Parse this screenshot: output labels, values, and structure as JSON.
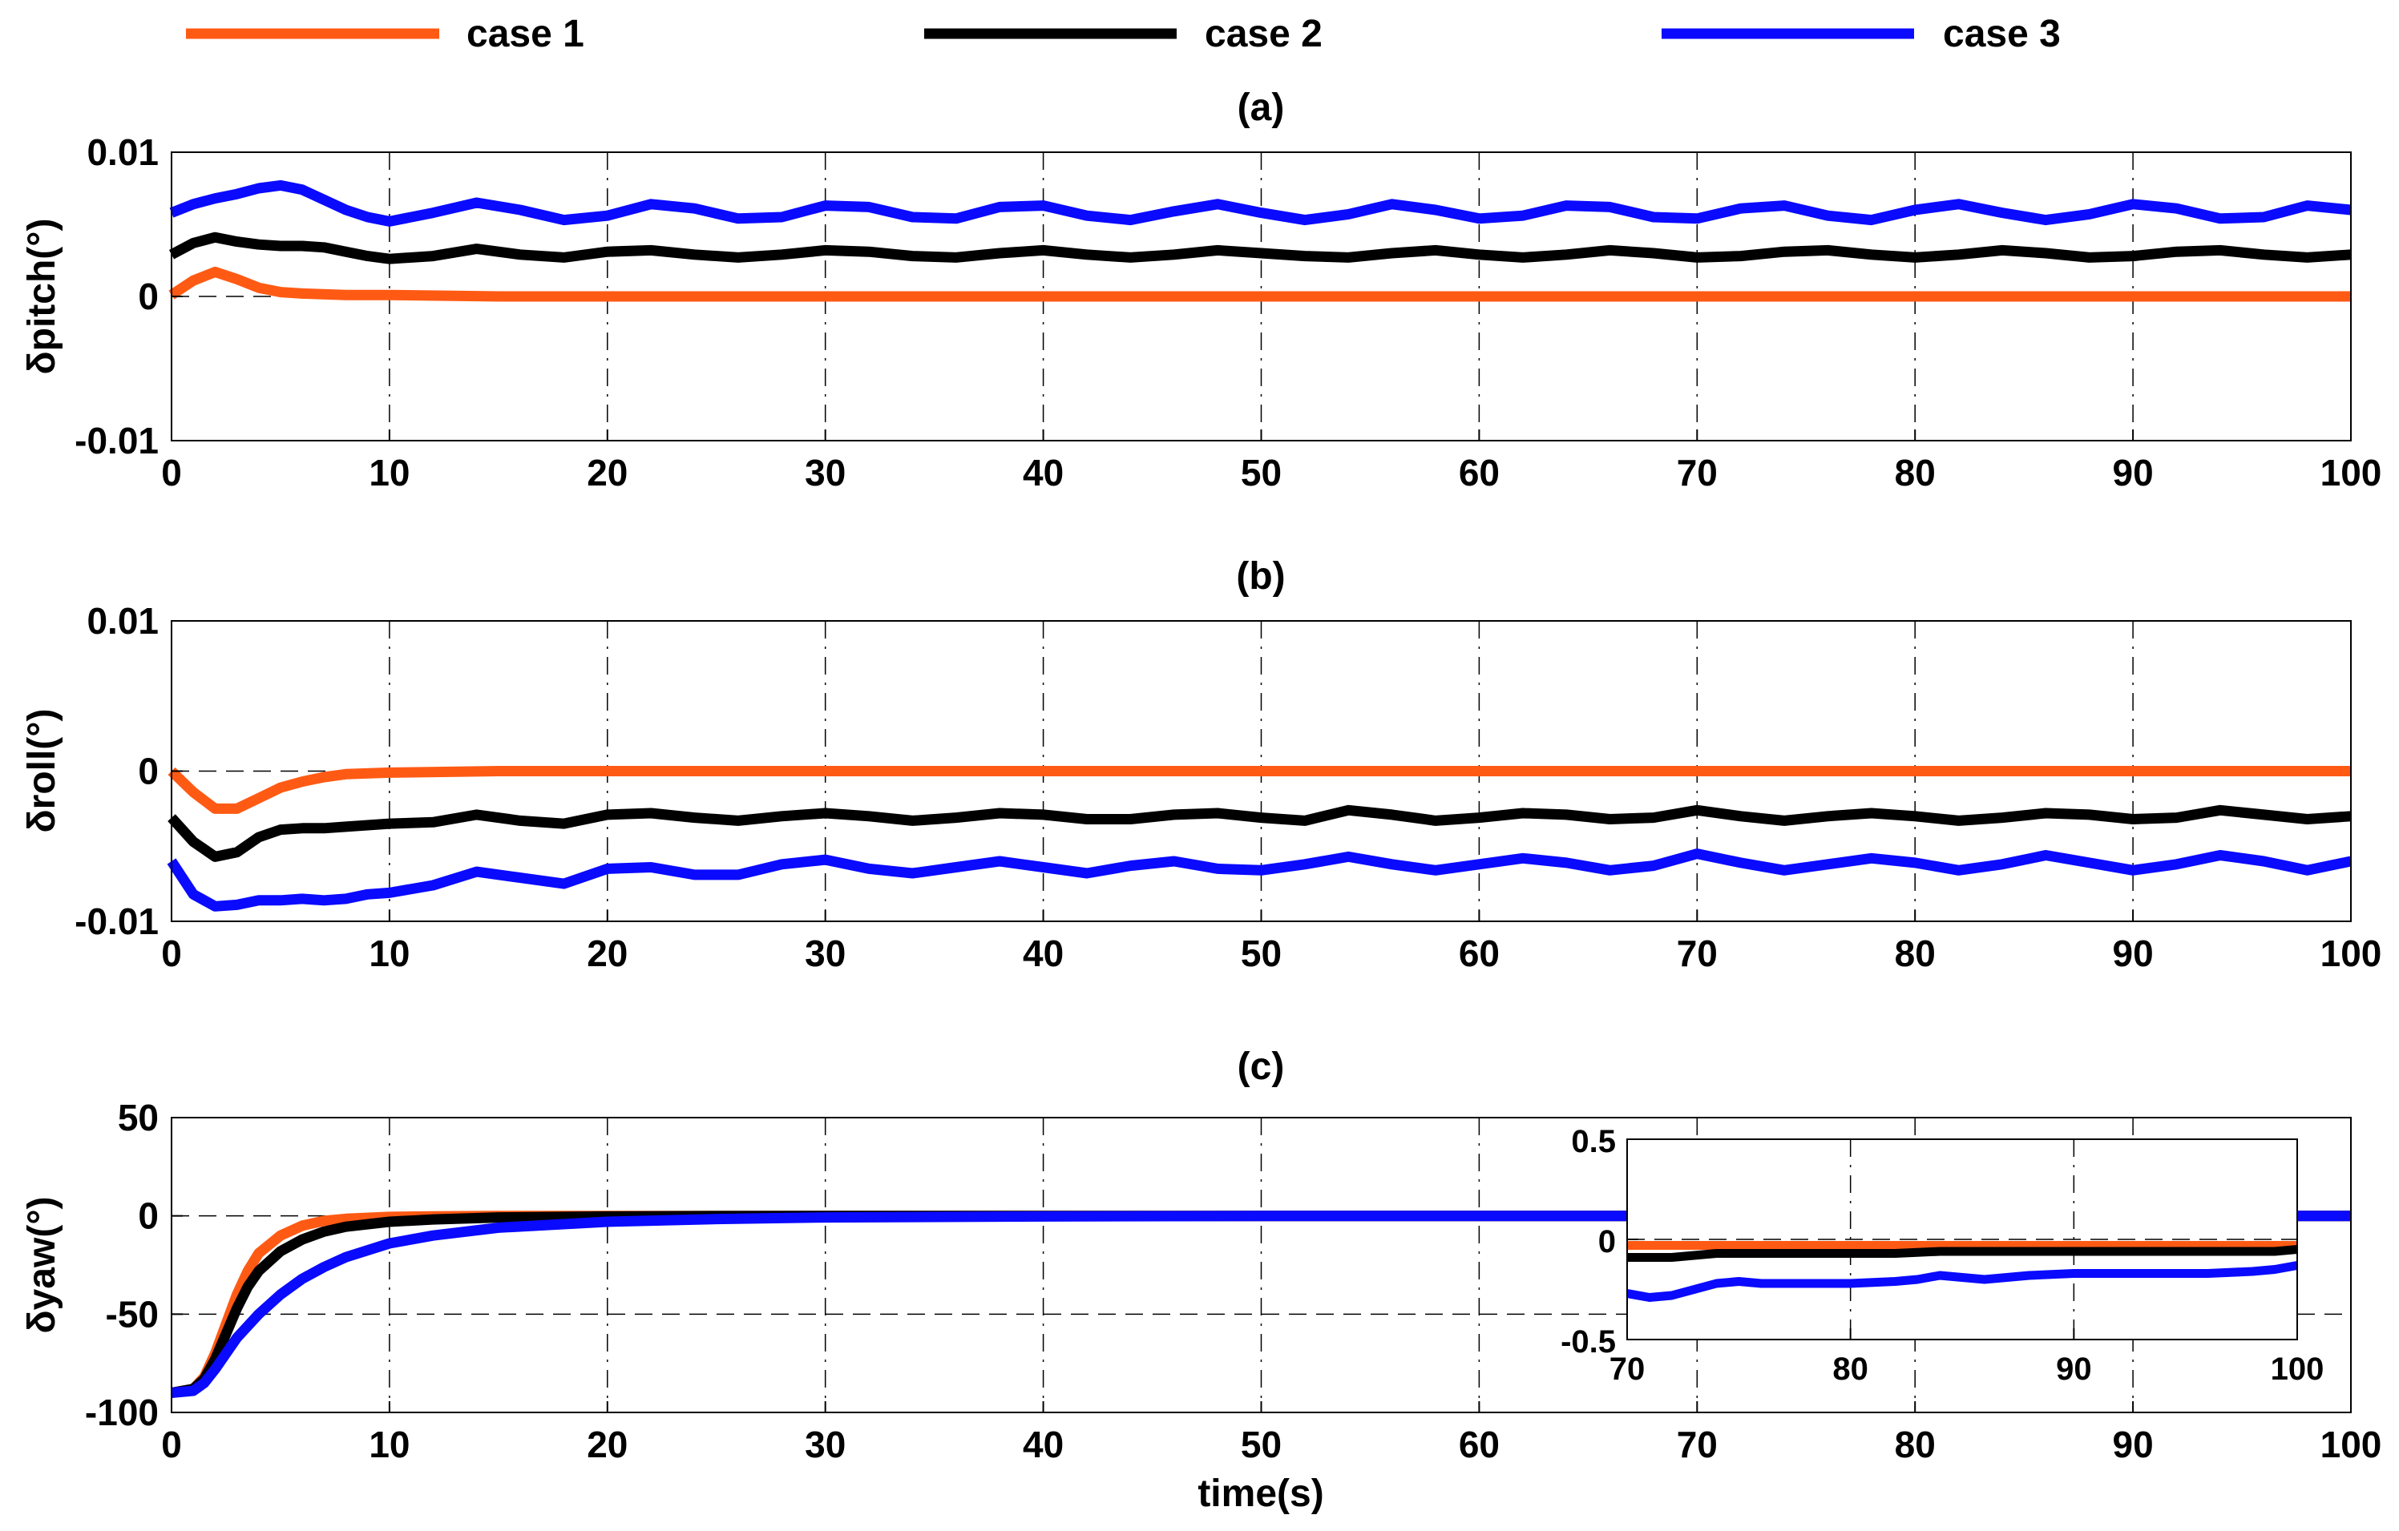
{
  "legend": [
    {
      "name": "case 1",
      "color": "#ff5a14"
    },
    {
      "name": "case 2",
      "color": "#000000"
    },
    {
      "name": "case 3",
      "color": "#0a0aff"
    }
  ],
  "chart_data": [
    {
      "type": "line",
      "title": "(a)",
      "xlabel": "",
      "ylabel": "δpitch(°)",
      "xlim": [
        0,
        100
      ],
      "ylim": [
        -0.01,
        0.01
      ],
      "xticks": [
        0,
        10,
        20,
        30,
        40,
        50,
        60,
        70,
        80,
        90,
        100
      ],
      "yticks": [
        -0.01,
        0,
        0.01
      ],
      "ytick_labels": [
        "-0.01",
        "0",
        "0.01"
      ],
      "grid": true,
      "series": [
        {
          "name": "case 1",
          "x": [
            0,
            1,
            2,
            3,
            4,
            5,
            6,
            8,
            10,
            15,
            20,
            30,
            40,
            50,
            60,
            70,
            80,
            90,
            100
          ],
          "values": [
            0.0001,
            0.0011,
            0.0017,
            0.0012,
            0.0006,
            0.0003,
            0.0002,
            0.0001,
            0.0001,
            0,
            0,
            0,
            0,
            0,
            0,
            0,
            0,
            0,
            0
          ]
        },
        {
          "name": "case 2",
          "x": [
            0,
            1,
            2,
            3,
            4,
            5,
            6,
            7,
            8,
            9,
            10,
            12,
            14,
            16,
            18,
            20,
            22,
            24,
            26,
            28,
            30,
            32,
            34,
            36,
            38,
            40,
            42,
            44,
            46,
            48,
            50,
            52,
            54,
            56,
            58,
            60,
            62,
            64,
            66,
            68,
            70,
            72,
            74,
            76,
            78,
            80,
            82,
            84,
            86,
            88,
            90,
            92,
            94,
            96,
            98,
            100
          ],
          "values": [
            0.0029,
            0.0037,
            0.0041,
            0.0038,
            0.0036,
            0.0035,
            0.0035,
            0.0034,
            0.0031,
            0.0028,
            0.0026,
            0.0028,
            0.0033,
            0.0029,
            0.0027,
            0.0031,
            0.0032,
            0.0029,
            0.0027,
            0.0029,
            0.0032,
            0.0031,
            0.0028,
            0.0027,
            0.003,
            0.0032,
            0.0029,
            0.0027,
            0.0029,
            0.0032,
            0.003,
            0.0028,
            0.0027,
            0.003,
            0.0032,
            0.0029,
            0.0027,
            0.0029,
            0.0032,
            0.003,
            0.0027,
            0.0028,
            0.0031,
            0.0032,
            0.0029,
            0.0027,
            0.0029,
            0.0032,
            0.003,
            0.0027,
            0.0028,
            0.0031,
            0.0032,
            0.0029,
            0.0027,
            0.0029
          ]
        },
        {
          "name": "case 3",
          "x": [
            0,
            1,
            2,
            3,
            4,
            5,
            6,
            7,
            8,
            9,
            10,
            12,
            14,
            16,
            18,
            20,
            22,
            24,
            26,
            28,
            30,
            32,
            34,
            36,
            38,
            40,
            42,
            44,
            46,
            48,
            50,
            52,
            54,
            56,
            58,
            60,
            62,
            64,
            66,
            68,
            70,
            72,
            74,
            76,
            78,
            80,
            82,
            84,
            86,
            88,
            90,
            92,
            94,
            96,
            98,
            100
          ],
          "values": [
            0.0058,
            0.0064,
            0.0068,
            0.0071,
            0.0075,
            0.0077,
            0.0074,
            0.0067,
            0.006,
            0.0055,
            0.0052,
            0.0058,
            0.0065,
            0.006,
            0.0053,
            0.0056,
            0.0064,
            0.0061,
            0.0054,
            0.0055,
            0.0063,
            0.0062,
            0.0055,
            0.0054,
            0.0062,
            0.0063,
            0.0056,
            0.0053,
            0.0059,
            0.0064,
            0.0058,
            0.0053,
            0.0057,
            0.0064,
            0.006,
            0.0054,
            0.0056,
            0.0063,
            0.0062,
            0.0055,
            0.0054,
            0.0061,
            0.0063,
            0.0056,
            0.0053,
            0.006,
            0.0064,
            0.0058,
            0.0053,
            0.0057,
            0.0064,
            0.0061,
            0.0054,
            0.0055,
            0.0063,
            0.006
          ]
        }
      ]
    },
    {
      "type": "line",
      "title": "(b)",
      "xlabel": "",
      "ylabel": "δroll(°)",
      "xlim": [
        0,
        100
      ],
      "ylim": [
        -0.01,
        0.01
      ],
      "xticks": [
        0,
        10,
        20,
        30,
        40,
        50,
        60,
        70,
        80,
        90,
        100
      ],
      "yticks": [
        -0.01,
        0,
        0.01
      ],
      "ytick_labels": [
        "-0.01",
        "0",
        "0.01"
      ],
      "grid": true,
      "series": [
        {
          "name": "case 1",
          "x": [
            0,
            1,
            2,
            3,
            4,
            5,
            6,
            7,
            8,
            10,
            15,
            20,
            30,
            40,
            50,
            60,
            70,
            80,
            90,
            100
          ],
          "values": [
            0,
            -0.0014,
            -0.0025,
            -0.0025,
            -0.0018,
            -0.0011,
            -0.0007,
            -0.0004,
            -0.0002,
            -0.0001,
            0,
            0,
            0,
            0,
            0,
            0,
            0,
            0,
            0,
            0
          ]
        },
        {
          "name": "case 2",
          "x": [
            0,
            1,
            2,
            3,
            4,
            5,
            6,
            7,
            8,
            9,
            10,
            12,
            14,
            16,
            18,
            20,
            22,
            24,
            26,
            28,
            30,
            32,
            34,
            36,
            38,
            40,
            42,
            44,
            46,
            48,
            50,
            52,
            54,
            56,
            58,
            60,
            62,
            64,
            66,
            68,
            70,
            72,
            74,
            76,
            78,
            80,
            82,
            84,
            86,
            88,
            90,
            92,
            94,
            96,
            98,
            100
          ],
          "values": [
            -0.0031,
            -0.0047,
            -0.0057,
            -0.0054,
            -0.0044,
            -0.0039,
            -0.0038,
            -0.0038,
            -0.0037,
            -0.0036,
            -0.0035,
            -0.0034,
            -0.0029,
            -0.0033,
            -0.0035,
            -0.0029,
            -0.0028,
            -0.0031,
            -0.0033,
            -0.003,
            -0.0028,
            -0.003,
            -0.0033,
            -0.0031,
            -0.0028,
            -0.0029,
            -0.0032,
            -0.0032,
            -0.0029,
            -0.0028,
            -0.0031,
            -0.0033,
            -0.0026,
            -0.0029,
            -0.0033,
            -0.0031,
            -0.0028,
            -0.0029,
            -0.0032,
            -0.0031,
            -0.0026,
            -0.003,
            -0.0033,
            -0.003,
            -0.0028,
            -0.003,
            -0.0033,
            -0.0031,
            -0.0028,
            -0.0029,
            -0.0032,
            -0.0031,
            -0.0026,
            -0.0029,
            -0.0032,
            -0.003
          ]
        },
        {
          "name": "case 3",
          "x": [
            0,
            1,
            2,
            3,
            4,
            5,
            6,
            7,
            8,
            9,
            10,
            12,
            14,
            16,
            18,
            20,
            22,
            24,
            26,
            28,
            30,
            32,
            34,
            36,
            38,
            40,
            42,
            44,
            46,
            48,
            50,
            52,
            54,
            56,
            58,
            60,
            62,
            64,
            66,
            68,
            70,
            72,
            74,
            76,
            78,
            80,
            82,
            84,
            86,
            88,
            90,
            92,
            94,
            96,
            98,
            100
          ],
          "values": [
            -0.006,
            -0.0082,
            -0.009,
            -0.0089,
            -0.0086,
            -0.0086,
            -0.0085,
            -0.0086,
            -0.0085,
            -0.0082,
            -0.0081,
            -0.0076,
            -0.0067,
            -0.0071,
            -0.0075,
            -0.0065,
            -0.0064,
            -0.0069,
            -0.0069,
            -0.0062,
            -0.0059,
            -0.0065,
            -0.0068,
            -0.0064,
            -0.006,
            -0.0064,
            -0.0068,
            -0.0063,
            -0.006,
            -0.0065,
            -0.0066,
            -0.0062,
            -0.0057,
            -0.0062,
            -0.0066,
            -0.0062,
            -0.0058,
            -0.0061,
            -0.0066,
            -0.0063,
            -0.0055,
            -0.0061,
            -0.0066,
            -0.0062,
            -0.0058,
            -0.0061,
            -0.0066,
            -0.0062,
            -0.0056,
            -0.0061,
            -0.0066,
            -0.0062,
            -0.0056,
            -0.006,
            -0.0066,
            -0.006
          ]
        }
      ]
    },
    {
      "type": "line",
      "title": "(c)",
      "xlabel": "time(s)",
      "ylabel": "δyaw(°)",
      "xlim": [
        0,
        100
      ],
      "ylim": [
        -100,
        50
      ],
      "xticks": [
        0,
        10,
        20,
        30,
        40,
        50,
        60,
        70,
        80,
        90,
        100
      ],
      "yticks": [
        -100,
        -50,
        0,
        50
      ],
      "ytick_labels": [
        "-100",
        "-50",
        "0",
        "50"
      ],
      "grid": true,
      "series": [
        {
          "name": "case 1",
          "x": [
            0,
            1,
            1.5,
            2,
            2.5,
            3,
            3.5,
            4,
            5,
            6,
            7,
            8,
            10,
            12,
            15,
            20,
            30,
            100
          ],
          "values": [
            -90,
            -88,
            -82,
            -70,
            -55,
            -40,
            -28,
            -19,
            -10,
            -5,
            -2.5,
            -1.5,
            -0.5,
            -0.2,
            0,
            0,
            0,
            0
          ]
        },
        {
          "name": "case 2",
          "x": [
            0,
            1,
            1.5,
            2,
            2.5,
            3,
            3.5,
            4,
            5,
            6,
            7,
            8,
            10,
            12,
            15,
            20,
            25,
            30,
            100
          ],
          "values": [
            -90,
            -88,
            -83,
            -73,
            -60,
            -47,
            -36,
            -28,
            -18,
            -12,
            -8,
            -5.5,
            -3,
            -1.8,
            -0.8,
            -0.3,
            -0.1,
            0,
            0
          ]
        },
        {
          "name": "case 3",
          "x": [
            0,
            1,
            1.5,
            2,
            2.5,
            3,
            4,
            5,
            6,
            7,
            8,
            10,
            12,
            15,
            20,
            25,
            30,
            40,
            50,
            100
          ],
          "values": [
            -90,
            -89,
            -85,
            -78,
            -70,
            -62,
            -50,
            -40,
            -32,
            -26,
            -21,
            -14,
            -10,
            -6,
            -3,
            -1.6,
            -0.8,
            -0.3,
            0,
            0
          ]
        }
      ],
      "inset": {
        "xlim": [
          70,
          100
        ],
        "ylim": [
          -0.5,
          0.5
        ],
        "xticks": [
          70,
          80,
          90,
          100
        ],
        "yticks": [
          -0.5,
          0,
          0.5
        ],
        "ytick_labels": [
          "-0.5",
          "0",
          "0.5"
        ],
        "grid": true,
        "series": [
          {
            "name": "case 1",
            "x": [
              70,
              72,
              74,
              76,
              78,
              80,
              82,
              84,
              86,
              88,
              90,
              92,
              94,
              96,
              98,
              100
            ],
            "values": [
              -0.03,
              -0.03,
              -0.03,
              -0.03,
              -0.03,
              -0.03,
              -0.03,
              -0.03,
              -0.03,
              -0.03,
              -0.03,
              -0.03,
              -0.03,
              -0.03,
              -0.03,
              -0.03
            ]
          },
          {
            "name": "case 2",
            "x": [
              70,
              71,
              72,
              73,
              74,
              76,
              78,
              80,
              82,
              84,
              86,
              88,
              90,
              92,
              94,
              96,
              98,
              99,
              100
            ],
            "values": [
              -0.09,
              -0.09,
              -0.09,
              -0.08,
              -0.07,
              -0.07,
              -0.07,
              -0.07,
              -0.07,
              -0.06,
              -0.06,
              -0.06,
              -0.06,
              -0.06,
              -0.06,
              -0.06,
              -0.06,
              -0.06,
              -0.05
            ]
          },
          {
            "name": "case 3",
            "x": [
              70,
              71,
              72,
              73,
              74,
              75,
              76,
              78,
              80,
              82,
              83,
              84,
              85,
              86,
              88,
              90,
              92,
              94,
              96,
              98,
              99,
              100
            ],
            "values": [
              -0.27,
              -0.29,
              -0.28,
              -0.25,
              -0.22,
              -0.21,
              -0.22,
              -0.22,
              -0.22,
              -0.21,
              -0.2,
              -0.18,
              -0.19,
              -0.2,
              -0.18,
              -0.17,
              -0.17,
              -0.17,
              -0.17,
              -0.16,
              -0.15,
              -0.13
            ]
          }
        ]
      }
    }
  ]
}
